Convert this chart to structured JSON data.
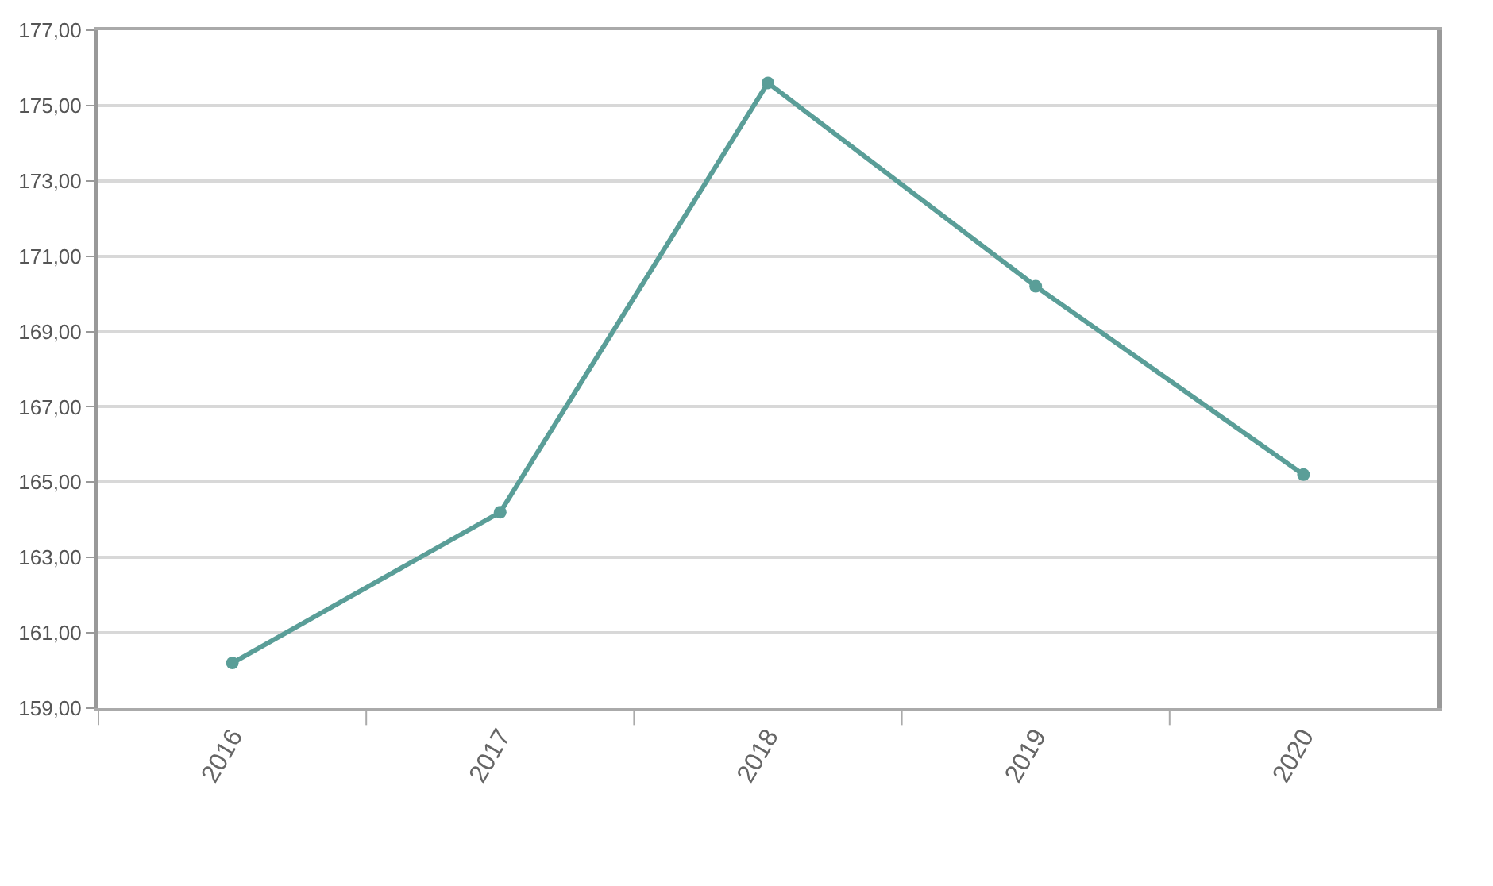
{
  "chart_data": {
    "type": "line",
    "categories": [
      "2016",
      "2017",
      "2018",
      "2019",
      "2020"
    ],
    "series": [
      {
        "color": "#5a9e98",
        "values": [
          160.2,
          164.2,
          175.6,
          170.2,
          165.2
        ]
      }
    ],
    "ylim": [
      159,
      177
    ],
    "yticks": [
      {
        "value": 159,
        "label": "159,00"
      },
      {
        "value": 161,
        "label": "161,00"
      },
      {
        "value": 163,
        "label": "163,00"
      },
      {
        "value": 165,
        "label": "165,00"
      },
      {
        "value": 167,
        "label": "167,00"
      },
      {
        "value": 169,
        "label": "169,00"
      },
      {
        "value": 171,
        "label": "171,00"
      },
      {
        "value": 173,
        "label": "173,00"
      },
      {
        "value": 175,
        "label": "175,00"
      },
      {
        "value": 177,
        "label": "177,00"
      }
    ],
    "grid": "y",
    "marker": "circle",
    "line_style": "solid"
  }
}
